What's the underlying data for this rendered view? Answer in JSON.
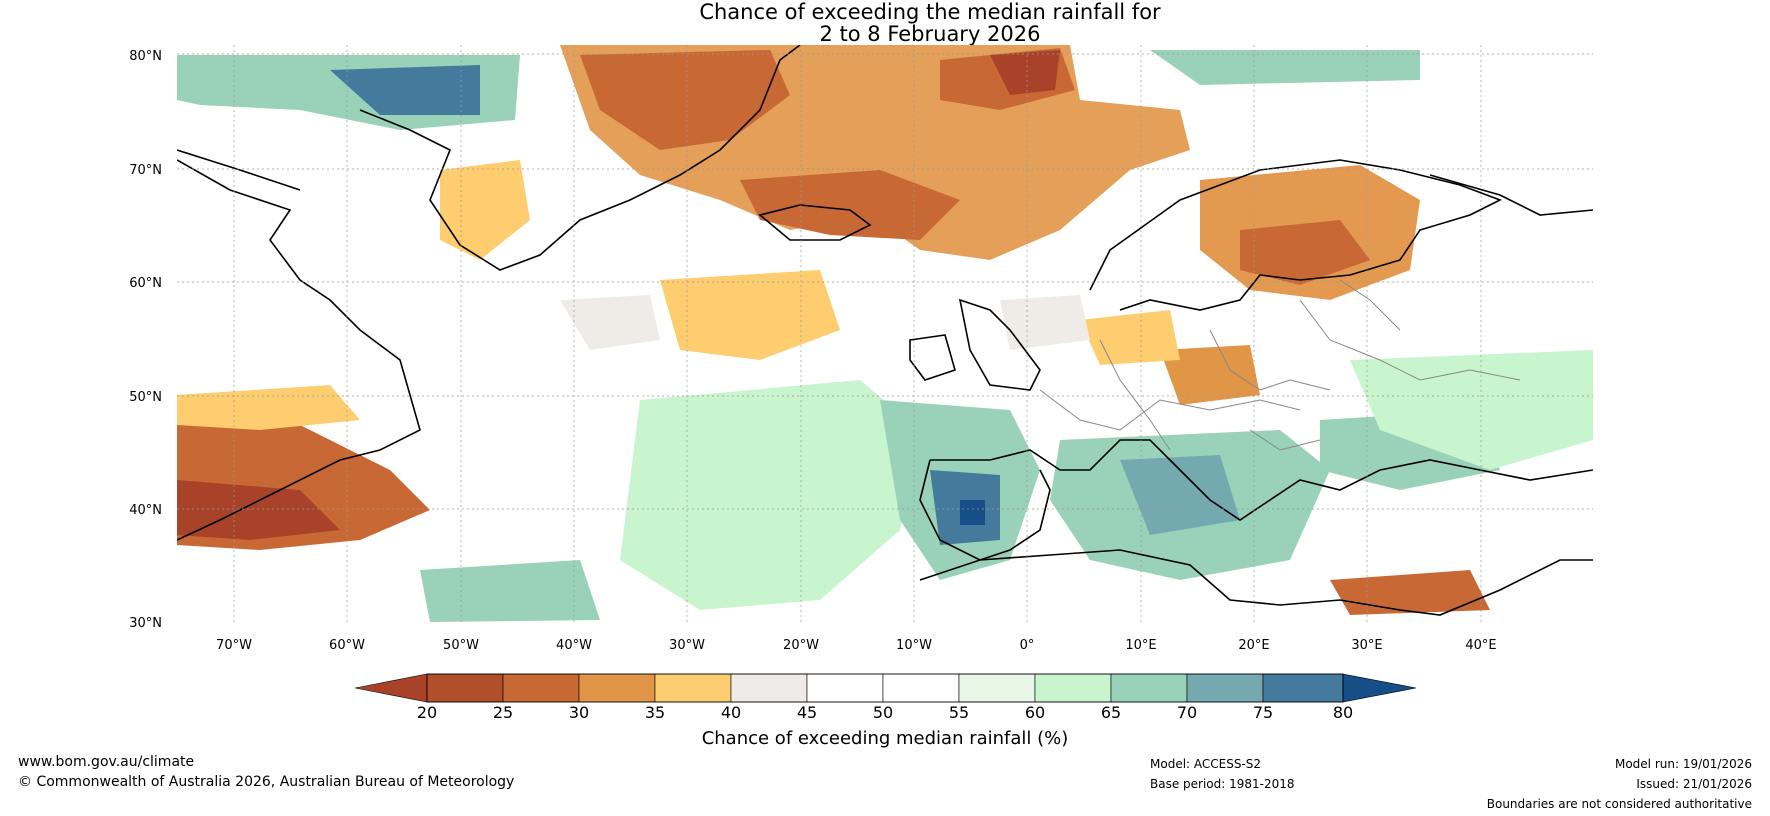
{
  "title": {
    "line1": "Chance of exceeding the median rainfall for",
    "line2": "2 to 8 February 2026"
  },
  "axes": {
    "lat_labels": [
      "80°N",
      "70°N",
      "60°N",
      "50°N",
      "40°N",
      "30°N"
    ],
    "lon_labels": [
      "70°W",
      "60°W",
      "50°W",
      "40°W",
      "30°W",
      "20°W",
      "10°W",
      "0°",
      "10°E",
      "20°E",
      "30°E",
      "40°E"
    ],
    "lat_range": [
      30,
      80
    ],
    "lon_range": [
      -75,
      50
    ]
  },
  "colorbar": {
    "label": "Chance of exceeding median rainfall (%)",
    "ticks": [
      "20",
      "25",
      "30",
      "35",
      "40",
      "45",
      "50",
      "55",
      "60",
      "65",
      "70",
      "75",
      "80"
    ],
    "colors": {
      "below20": "#a8432a",
      "b20_25": "#b24f2b",
      "b25_30": "#c86834",
      "b30_35": "#e19547",
      "b35_40": "#fdcd6f",
      "b40_45": "#efebe7",
      "b45_50": "#ffffff",
      "b50_55": "#ffffff",
      "b55_60": "#e8f6e8",
      "b60_65": "#c8f5cd",
      "b65_70": "#9ad1b9",
      "b70_75": "#74a9b0",
      "b75_80": "#447a9c",
      "above80": "#164e87"
    }
  },
  "footer": {
    "website": "www.bom.gov.au/climate",
    "copyright": "© Commonwealth of Australia 2026, Australian Bureau of Meteorology",
    "model": "Model: ACCESS-S2",
    "base_period": "Base period: 1981-2018",
    "model_run": "Model run: 19/01/2026",
    "issued": "Issued: 21/01/2026",
    "disclaimer": "Boundaries are not considered authoritative"
  }
}
